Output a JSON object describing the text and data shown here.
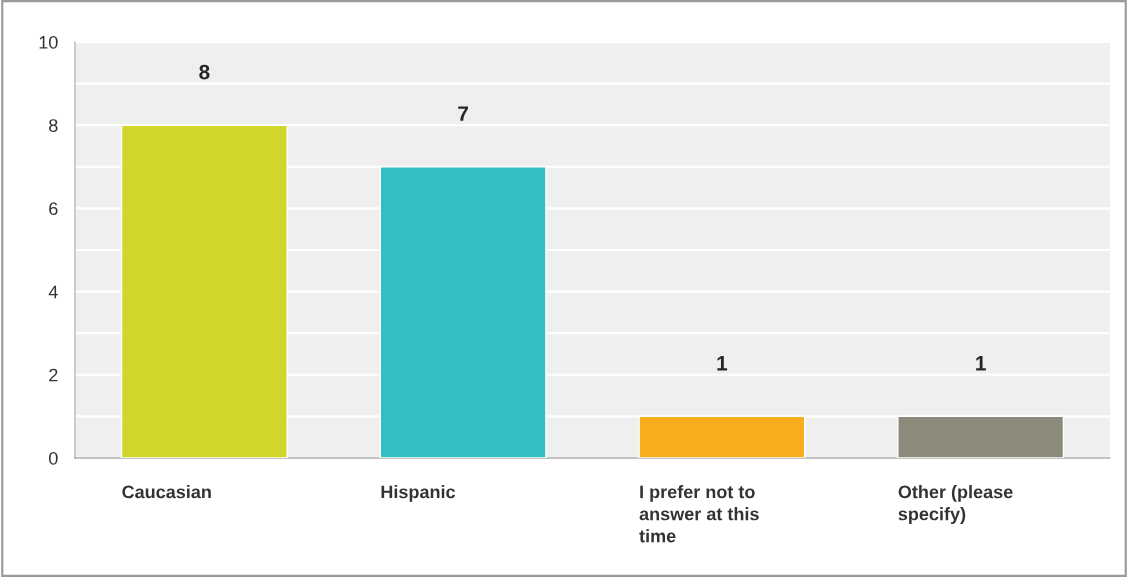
{
  "chart_data": {
    "type": "bar",
    "categories": [
      "Caucasian",
      "Hispanic",
      "I prefer not to answer at this time",
      "Other (please specify)"
    ],
    "values": [
      8,
      7,
      1,
      1
    ],
    "colors": [
      "#d0d62a",
      "#33bec1",
      "#f6ae1f",
      "#8b8a7b"
    ],
    "ylim": [
      0,
      10
    ],
    "yticks": [
      0,
      {
        "value": 1,
        "label": null
      },
      2,
      {
        "value": 3,
        "label": null
      },
      4,
      {
        "value": 5,
        "label": null
      },
      6,
      {
        "value": 7,
        "label": null
      },
      8,
      {
        "value": 9,
        "label": null
      },
      10
    ],
    "grid": "y",
    "data_labels": true
  }
}
